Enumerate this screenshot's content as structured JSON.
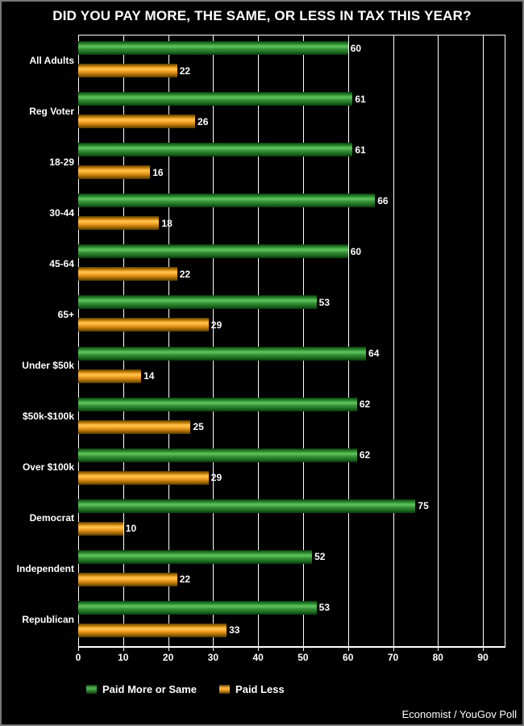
{
  "title": "DID YOU PAY MORE, THE SAME, OR LESS IN TAX THIS YEAR?",
  "attribution": "Economist / YouGov Poll",
  "colors": {
    "background": "#000000",
    "frame_border": "#787878",
    "grid": "#ffffff",
    "text": "#ffffff",
    "green": "#2f8f2f",
    "orange": "#f09d1e"
  },
  "legend": {
    "items": [
      {
        "label": "Paid More or Same",
        "color": "#2f8f2f"
      },
      {
        "label": "Paid Less",
        "color": "#f09d1e"
      }
    ]
  },
  "chart_data": {
    "type": "bar",
    "orientation": "horizontal",
    "title": "DID YOU PAY MORE, THE SAME, OR LESS IN TAX THIS YEAR?",
    "categories": [
      "All Adults",
      "Reg Voter",
      "18-29",
      "30-44",
      "45-64",
      "65+",
      "Under $50k",
      "$50k-$100k",
      "Over $100k",
      "Democrat",
      "Independent",
      "Republican"
    ],
    "series": [
      {
        "name": "Paid More or Same",
        "color": "#2f8f2f",
        "values": [
          60,
          61,
          61,
          66,
          60,
          53,
          64,
          62,
          62,
          75,
          52,
          53
        ]
      },
      {
        "name": "Paid Less",
        "color": "#f09d1e",
        "values": [
          22,
          26,
          16,
          18,
          22,
          29,
          14,
          25,
          29,
          10,
          22,
          33
        ]
      }
    ],
    "xlabel": "",
    "ylabel": "",
    "xlim": [
      0,
      95
    ],
    "xticks": [
      0,
      10,
      20,
      30,
      40,
      50,
      60,
      70,
      80,
      90
    ],
    "grid": true,
    "grid_color": "#ffffff",
    "legend_position": "bottom",
    "data_labels": true
  }
}
